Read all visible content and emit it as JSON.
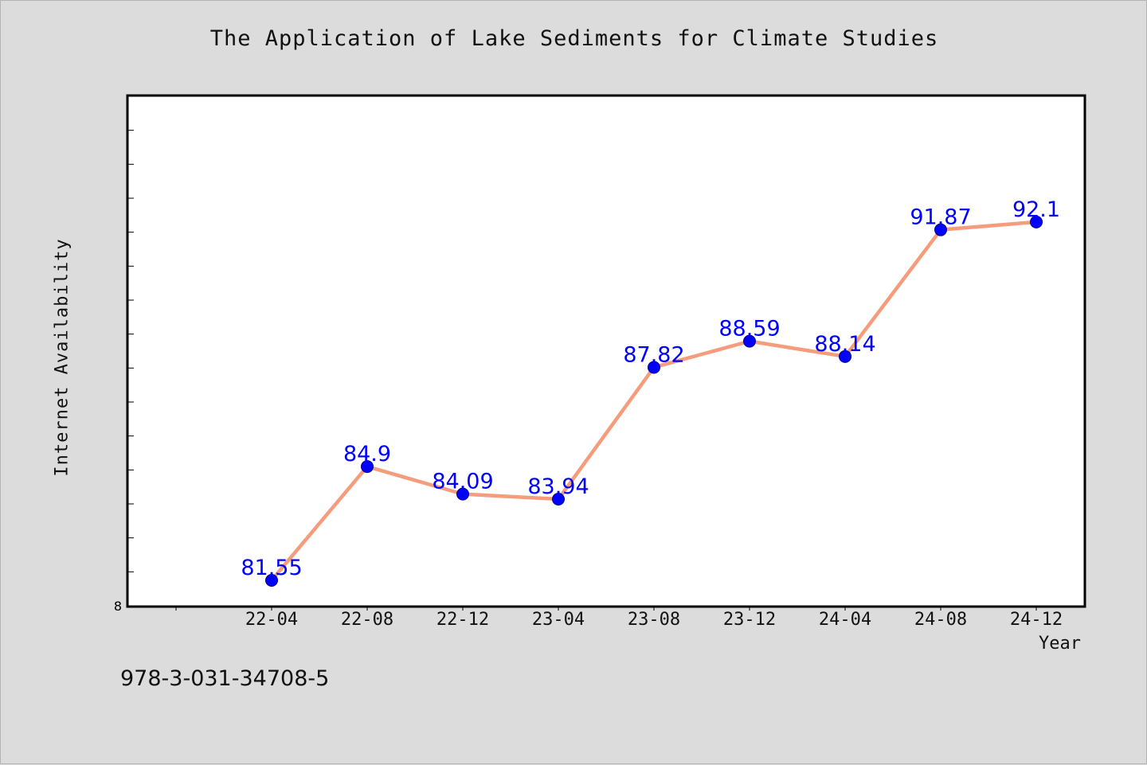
{
  "chart_data": {
    "type": "line",
    "title": "The Application of Lake Sediments for Climate Studies",
    "xlabel": "Year",
    "ylabel": "Internet Availability",
    "categories": [
      "22-04",
      "22-08",
      "22-12",
      "23-04",
      "23-08",
      "23-12",
      "24-04",
      "24-08",
      "24-12"
    ],
    "values": [
      81.55,
      84.9,
      84.09,
      83.94,
      87.82,
      88.59,
      88.14,
      91.87,
      92.1
    ],
    "data_labels": [
      "81.55",
      "84.9",
      "84.09",
      "83.94",
      "87.82",
      "88.59",
      "88.14",
      "91.87",
      "92.1"
    ],
    "y_tick_label": "8",
    "ylim": [
      80.8,
      95.8
    ],
    "grid": false,
    "legend": "none",
    "colors": {
      "line": "#f59c7c",
      "marker": "#0000ff",
      "data_label": "#0000ff",
      "plot_background": "#ffffff",
      "page_background": "#dcdcdc"
    }
  },
  "footer_text": "978-3-031-34708-5"
}
